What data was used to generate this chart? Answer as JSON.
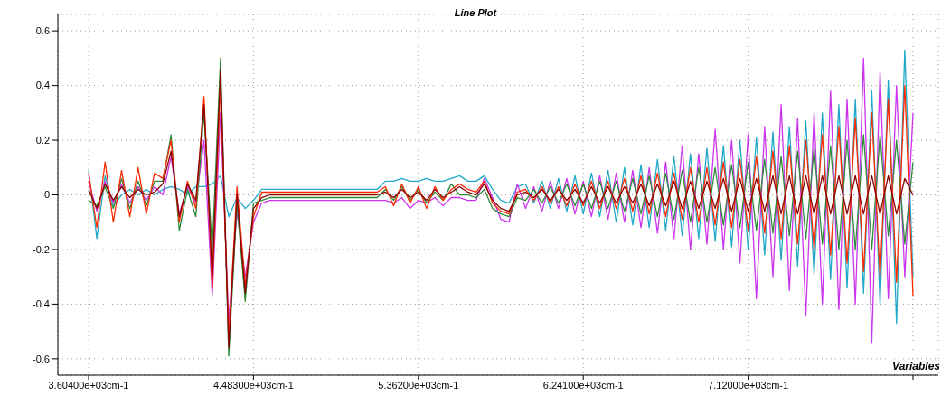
{
  "chart_data": {
    "type": "line",
    "title": "Line Plot",
    "xlabel": "Variables",
    "categories": [
      "3.60400e+03cm-1",
      null,
      null,
      null,
      null,
      null,
      null,
      null,
      null,
      null,
      null,
      null,
      null,
      null,
      null,
      null,
      null,
      null,
      null,
      null,
      "4.48300e+03cm-1",
      null,
      null,
      null,
      null,
      null,
      null,
      null,
      null,
      null,
      null,
      null,
      null,
      null,
      null,
      null,
      null,
      null,
      null,
      null,
      "5.36200e+03cm-1",
      null,
      null,
      null,
      null,
      null,
      null,
      null,
      null,
      null,
      null,
      null,
      null,
      null,
      null,
      null,
      null,
      null,
      null,
      null,
      "6.24100e+03cm-1",
      null,
      null,
      null,
      null,
      null,
      null,
      null,
      null,
      null,
      null,
      null,
      null,
      null,
      null,
      null,
      null,
      null,
      null,
      null,
      "7.12000e+03cm-1",
      null,
      null,
      null,
      null,
      null,
      null,
      null,
      null,
      null,
      null,
      null,
      null,
      null,
      null,
      null,
      null,
      null,
      null,
      null,
      null
    ],
    "series": [
      {
        "color": "#20a8c8",
        "values": [
          0.09,
          -0.16,
          0.07,
          -0.04,
          0.0,
          0.02,
          0.0,
          0.02,
          0.0,
          0.02,
          0.03,
          0.02,
          0.0,
          0.03,
          0.03,
          0.04,
          0.07,
          -0.08,
          -0.01,
          -0.05,
          -0.02,
          0.02,
          0.02,
          0.02,
          0.02,
          0.02,
          0.02,
          0.02,
          0.02,
          0.02,
          0.02,
          0.02,
          0.02,
          0.02,
          0.02,
          0.02,
          0.05,
          0.05,
          0.06,
          0.05,
          0.05,
          0.06,
          0.05,
          0.05,
          0.06,
          0.07,
          0.05,
          0.05,
          0.07,
          0.02,
          -0.02,
          -0.03,
          0.03,
          0.04,
          -0.03,
          0.05,
          -0.05,
          0.06,
          -0.06,
          0.07,
          -0.07,
          0.08,
          -0.08,
          0.09,
          -0.1,
          0.1,
          -0.11,
          0.11,
          -0.12,
          0.13,
          -0.13,
          0.14,
          -0.15,
          0.15,
          -0.16,
          0.17,
          -0.17,
          0.18,
          -0.19,
          0.2,
          -0.2,
          0.21,
          -0.22,
          0.23,
          -0.24,
          0.25,
          -0.26,
          0.27,
          -0.29,
          0.3,
          -0.31,
          0.33,
          -0.34,
          0.35,
          -0.36,
          0.38,
          -0.4,
          0.42,
          -0.47,
          0.53,
          -0.3
        ]
      },
      {
        "color": "#cc33ee",
        "values": [
          0.05,
          -0.06,
          0.05,
          -0.03,
          0.04,
          -0.03,
          0.03,
          -0.02,
          0.03,
          0.0,
          0.14,
          -0.07,
          0.03,
          -0.03,
          0.2,
          -0.37,
          0.3,
          -0.46,
          -0.06,
          -0.3,
          -0.1,
          -0.03,
          -0.02,
          -0.02,
          -0.02,
          -0.02,
          -0.02,
          -0.02,
          -0.02,
          -0.02,
          -0.02,
          -0.02,
          -0.02,
          -0.02,
          -0.02,
          -0.02,
          -0.02,
          -0.03,
          -0.01,
          -0.05,
          -0.02,
          -0.03,
          -0.01,
          -0.04,
          -0.01,
          -0.01,
          -0.02,
          -0.02,
          0.06,
          -0.01,
          -0.09,
          -0.1,
          0.04,
          -0.05,
          0.03,
          -0.06,
          0.05,
          -0.05,
          0.06,
          -0.07,
          0.05,
          -0.08,
          0.07,
          -0.09,
          0.08,
          -0.1,
          0.09,
          -0.12,
          0.1,
          -0.14,
          0.12,
          -0.16,
          0.18,
          -0.2,
          0.15,
          -0.18,
          0.24,
          -0.2,
          0.2,
          -0.25,
          0.22,
          -0.38,
          0.25,
          -0.3,
          0.33,
          -0.35,
          0.28,
          -0.44,
          0.3,
          -0.4,
          0.38,
          -0.42,
          0.35,
          -0.4,
          0.5,
          -0.54,
          0.45,
          -0.38,
          0.4,
          -0.3,
          0.3
        ]
      },
      {
        "color": "#2e8b3a",
        "values": [
          -0.02,
          -0.04,
          0.03,
          -0.05,
          0.06,
          -0.05,
          0.05,
          -0.04,
          0.05,
          0.05,
          0.22,
          -0.13,
          0.02,
          -0.08,
          0.3,
          -0.2,
          0.5,
          -0.59,
          -0.03,
          -0.39,
          -0.03,
          -0.02,
          -0.01,
          -0.01,
          -0.01,
          -0.01,
          -0.01,
          -0.01,
          -0.01,
          -0.01,
          -0.01,
          -0.01,
          -0.01,
          -0.01,
          -0.01,
          -0.01,
          0.02,
          -0.02,
          0.03,
          -0.02,
          0.02,
          -0.03,
          0.01,
          -0.02,
          0.04,
          0.0,
          0.0,
          -0.01,
          0.02,
          -0.05,
          -0.07,
          -0.08,
          -0.01,
          -0.02,
          0.02,
          -0.03,
          0.03,
          -0.03,
          0.04,
          -0.04,
          0.04,
          -0.05,
          0.05,
          -0.05,
          0.05,
          -0.06,
          0.06,
          -0.07,
          0.07,
          -0.08,
          0.08,
          -0.09,
          0.09,
          -0.1,
          0.1,
          -0.1,
          0.1,
          -0.11,
          0.11,
          -0.12,
          0.12,
          -0.13,
          0.13,
          -0.14,
          0.14,
          -0.15,
          0.16,
          -0.16,
          0.17,
          -0.18,
          0.18,
          -0.2,
          0.2,
          -0.2,
          0.22,
          -0.2,
          0.22,
          -0.15,
          0.2,
          -0.18,
          0.12
        ]
      },
      {
        "color": "#ff2a00",
        "values": [
          0.08,
          -0.12,
          0.12,
          -0.1,
          0.09,
          -0.08,
          0.1,
          -0.07,
          0.08,
          0.06,
          0.2,
          -0.1,
          0.05,
          -0.05,
          0.36,
          -0.34,
          0.4,
          -0.52,
          0.03,
          -0.33,
          -0.08,
          0.01,
          0.01,
          0.01,
          0.01,
          0.01,
          0.01,
          0.01,
          0.01,
          0.01,
          0.01,
          0.01,
          0.01,
          0.01,
          0.01,
          0.01,
          0.03,
          -0.04,
          0.04,
          -0.03,
          0.03,
          -0.05,
          0.03,
          -0.02,
          0.02,
          0.04,
          0.02,
          0.01,
          0.05,
          -0.03,
          -0.06,
          -0.07,
          0.01,
          0.02,
          -0.02,
          0.03,
          -0.03,
          0.03,
          -0.04,
          0.04,
          -0.04,
          0.05,
          -0.05,
          0.05,
          -0.05,
          0.06,
          -0.06,
          0.07,
          -0.07,
          0.08,
          -0.08,
          0.08,
          -0.09,
          0.1,
          -0.1,
          0.1,
          -0.11,
          0.12,
          -0.12,
          0.13,
          -0.13,
          0.14,
          -0.14,
          0.16,
          -0.16,
          0.18,
          -0.18,
          0.2,
          -0.2,
          0.22,
          -0.22,
          0.25,
          -0.25,
          0.28,
          -0.28,
          0.3,
          -0.3,
          0.35,
          -0.32,
          0.4,
          -0.37
        ]
      },
      {
        "color": "#8b0000",
        "values": [
          0.02,
          -0.05,
          0.04,
          -0.02,
          0.03,
          -0.01,
          0.02,
          0.0,
          0.01,
          0.04,
          0.16,
          -0.08,
          0.04,
          -0.02,
          0.33,
          -0.3,
          0.46,
          -0.56,
          0.0,
          -0.36,
          -0.05,
          -0.01,
          0,
          0,
          0,
          0,
          0,
          0,
          0,
          0,
          0,
          0,
          0,
          0,
          0,
          0,
          0.01,
          -0.01,
          0.02,
          -0.01,
          0.01,
          -0.02,
          0.02,
          -0.01,
          0.01,
          0.03,
          0.01,
          0.0,
          0.04,
          -0.02,
          -0.05,
          -0.06,
          0.0,
          0.01,
          -0.01,
          0.02,
          -0.02,
          0.02,
          -0.02,
          0.02,
          -0.03,
          0.03,
          -0.03,
          0.03,
          -0.03,
          0.03,
          -0.03,
          0.04,
          -0.04,
          0.04,
          -0.04,
          0.05,
          -0.05,
          0.05,
          -0.05,
          0.05,
          -0.05,
          0.06,
          -0.06,
          0.06,
          -0.06,
          0.06,
          -0.06,
          0.07,
          -0.07,
          0.07,
          -0.07,
          0.07,
          -0.07,
          0.07,
          -0.07,
          0.07,
          -0.07,
          0.07,
          -0.07,
          0.07,
          -0.07,
          0.07,
          -0.07,
          0.06,
          0.0
        ]
      }
    ],
    "ylim": [
      -0.66,
      0.66
    ],
    "yticks": [
      -0.6,
      -0.4,
      -0.2,
      0,
      0.2,
      0.4,
      0.6
    ],
    "grid": true,
    "marker": "none",
    "line_style": "solid"
  }
}
